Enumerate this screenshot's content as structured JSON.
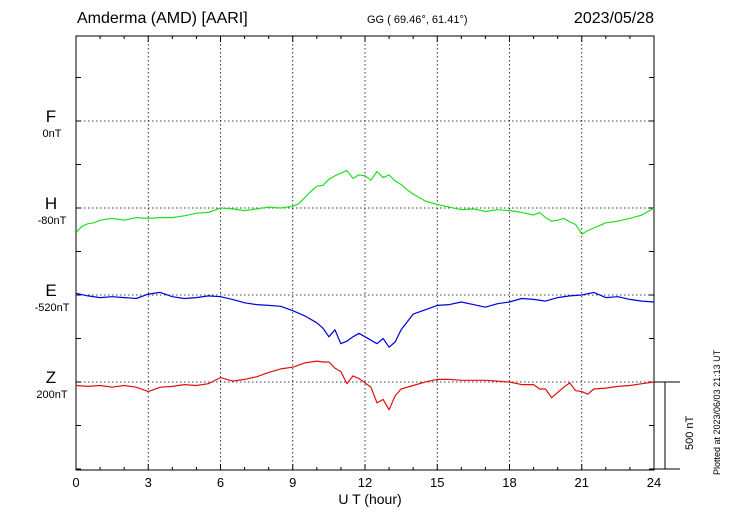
{
  "header": {
    "station": "Amderma (AMD)  [AARI]",
    "coords": "GG ( 69.46°,  61.41°)",
    "date": "2023/05/28"
  },
  "footer": {
    "plotted": "Plotted at 2023/06/03 21:13 UT"
  },
  "chart_data": {
    "type": "line",
    "title": "Amderma (AMD)  [AARI]",
    "xlabel": "U T (hour)",
    "ylabel": "",
    "xlim": [
      0,
      24
    ],
    "xticks": [
      0,
      3,
      6,
      9,
      12,
      15,
      18,
      21,
      24
    ],
    "tick_labels": [
      "0",
      "3",
      "6",
      "9",
      "12",
      "15",
      "18",
      "21",
      "24"
    ],
    "scale_bar": "500 nT",
    "grid": true,
    "channels": [
      {
        "label": "F",
        "baseline_label": "0nT",
        "color": "#f5a800",
        "offset_nT": 1000
      },
      {
        "label": "H",
        "baseline_label": "-80nT",
        "color": "#20e020",
        "offset_nT": 500
      },
      {
        "label": "E",
        "baseline_label": "-520nT",
        "color": "#0000dd",
        "offset_nT": 0
      },
      {
        "label": "Z",
        "baseline_label": "200nT",
        "color": "#e01010",
        "offset_nT": -500
      }
    ],
    "series": [
      {
        "name": "H",
        "color": "#20e020",
        "x": [
          0,
          0.25,
          0.5,
          0.75,
          1,
          1.5,
          2,
          2.5,
          3,
          3.5,
          4,
          4.5,
          5,
          5.5,
          6,
          6.5,
          7,
          7.5,
          8,
          8.5,
          9,
          9.25,
          9.5,
          9.75,
          10,
          10.25,
          10.5,
          10.75,
          11,
          11.25,
          11.5,
          11.75,
          12,
          12.25,
          12.5,
          12.75,
          13,
          13.25,
          13.5,
          13.75,
          14,
          14.5,
          15,
          15.5,
          16,
          16.5,
          17,
          17.5,
          18,
          18.5,
          19,
          19.25,
          19.5,
          19.75,
          20,
          20.25,
          20.5,
          20.75,
          21,
          21.25,
          21.5,
          21.75,
          22,
          22.5,
          23,
          23.5,
          24
        ],
        "y": [
          -140,
          -105,
          -90,
          -85,
          -70,
          -60,
          -70,
          -55,
          -60,
          -55,
          -55,
          -45,
          -30,
          -25,
          0,
          -5,
          -15,
          -5,
          5,
          0,
          10,
          25,
          60,
          95,
          125,
          130,
          165,
          185,
          200,
          215,
          170,
          190,
          185,
          160,
          210,
          175,
          190,
          155,
          135,
          105,
          80,
          40,
          20,
          5,
          -10,
          -5,
          -20,
          -10,
          -15,
          -25,
          -40,
          -25,
          -55,
          -75,
          -70,
          -60,
          -80,
          -95,
          -150,
          -130,
          -115,
          -100,
          -85,
          -75,
          -60,
          -40,
          0
        ]
      },
      {
        "name": "E",
        "color": "#0000dd",
        "x": [
          0,
          0.5,
          1,
          1.5,
          2,
          2.5,
          3,
          3.5,
          4,
          4.5,
          5,
          5.5,
          6,
          6.5,
          7,
          7.5,
          8,
          8.5,
          9,
          9.5,
          10,
          10.25,
          10.5,
          10.75,
          11,
          11.25,
          11.5,
          11.75,
          12,
          12.25,
          12.5,
          12.75,
          13,
          13.25,
          13.5,
          14,
          14.5,
          15,
          15.5,
          16,
          16.5,
          17,
          17.5,
          18,
          18.5,
          19,
          19.5,
          20,
          20.5,
          21,
          21.5,
          22,
          22.5,
          23,
          23.5,
          24
        ],
        "y": [
          10,
          -5,
          -15,
          -10,
          -15,
          -20,
          5,
          15,
          -10,
          -20,
          -15,
          -5,
          -10,
          -25,
          -45,
          -55,
          -60,
          -65,
          -90,
          -120,
          -160,
          -190,
          -240,
          -200,
          -280,
          -265,
          -240,
          -220,
          -240,
          -260,
          -280,
          -250,
          -300,
          -270,
          -200,
          -110,
          -85,
          -60,
          -55,
          -40,
          -55,
          -70,
          -50,
          -40,
          -20,
          -25,
          -35,
          -15,
          -5,
          0,
          15,
          -15,
          -10,
          -25,
          -35,
          -40
        ]
      },
      {
        "name": "Z",
        "color": "#e01010",
        "x": [
          0,
          0.5,
          1,
          1.5,
          2,
          2.5,
          3,
          3.5,
          4,
          4.5,
          5,
          5.5,
          6,
          6.5,
          7,
          7.5,
          8,
          8.5,
          9,
          9.5,
          10,
          10.25,
          10.5,
          10.75,
          11,
          11.25,
          11.5,
          11.75,
          12,
          12.25,
          12.5,
          12.75,
          13,
          13.25,
          13.5,
          14,
          14.5,
          15,
          15.5,
          16,
          16.5,
          17,
          17.5,
          18,
          18.5,
          19,
          19.25,
          19.5,
          19.75,
          20,
          20.25,
          20.5,
          20.75,
          21,
          21.25,
          21.5,
          22,
          22.5,
          23,
          23.5,
          24
        ],
        "y": [
          -20,
          -25,
          -20,
          -30,
          -20,
          -30,
          -55,
          -30,
          -25,
          -15,
          -20,
          -10,
          25,
          5,
          15,
          30,
          55,
          75,
          85,
          110,
          120,
          115,
          115,
          80,
          60,
          -10,
          35,
          20,
          -5,
          -30,
          -120,
          -100,
          -160,
          -80,
          -40,
          -20,
          0,
          15,
          15,
          10,
          10,
          10,
          5,
          0,
          -15,
          -15,
          -40,
          -40,
          -90,
          -60,
          -30,
          -5,
          -50,
          -55,
          -70,
          -40,
          -35,
          -25,
          -20,
          -10,
          0
        ]
      }
    ]
  }
}
